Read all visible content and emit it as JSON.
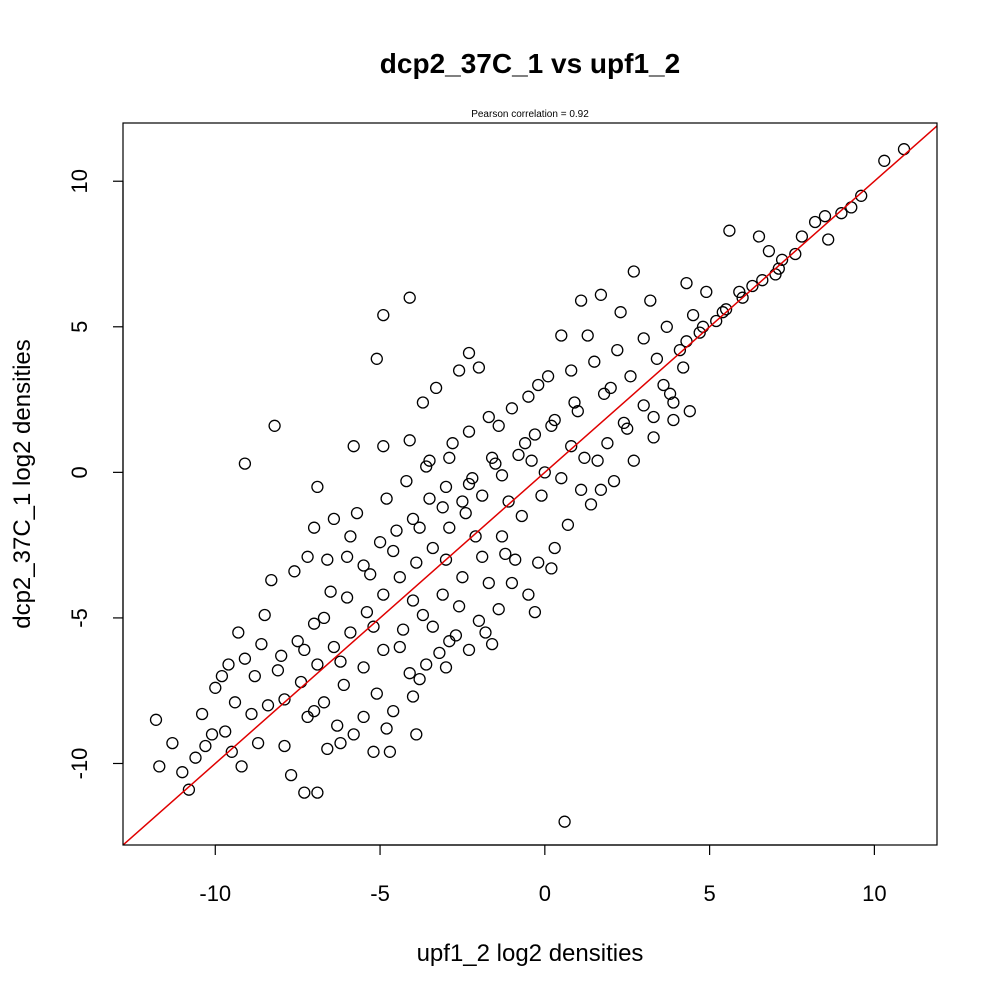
{
  "chart_data": {
    "type": "scatter",
    "title": "dcp2_37C_1 vs upf1_2",
    "subtitle": "Pearson correlation =  0.92",
    "xlabel": "upf1_2 log2 densities",
    "ylabel": "dcp2_37C_1 log2 densities",
    "xlim": [
      -12.8,
      11.9
    ],
    "ylim": [
      -12.8,
      12.0
    ],
    "xticks": [
      -10,
      -5,
      0,
      5,
      10
    ],
    "yticks": [
      -10,
      -5,
      0,
      5,
      10
    ],
    "xtick_labels": [
      "-10",
      "-5",
      "0",
      "5",
      "10"
    ],
    "ytick_labels": [
      "-10",
      "-5",
      "0",
      "5",
      "10"
    ],
    "grid": false,
    "marker": "open-circle",
    "point_color": "#000000",
    "fit_line": {
      "color": "#e00000",
      "slope": 1.0,
      "intercept": 0.0
    },
    "points": [
      [
        10.9,
        11.1
      ],
      [
        10.3,
        10.7
      ],
      [
        9.6,
        9.5
      ],
      [
        9.3,
        9.1
      ],
      [
        9.0,
        8.9
      ],
      [
        8.5,
        8.8
      ],
      [
        8.2,
        8.6
      ],
      [
        8.6,
        8.0
      ],
      [
        7.8,
        8.1
      ],
      [
        7.6,
        7.5
      ],
      [
        7.2,
        7.3
      ],
      [
        6.8,
        7.6
      ],
      [
        5.6,
        8.3
      ],
      [
        6.5,
        8.1
      ],
      [
        7.0,
        6.8
      ],
      [
        6.3,
        6.4
      ],
      [
        5.9,
        6.2
      ],
      [
        5.5,
        5.6
      ],
      [
        5.2,
        5.2
      ],
      [
        4.7,
        4.8
      ],
      [
        4.3,
        4.5
      ],
      [
        4.9,
        6.2
      ],
      [
        2.7,
        6.9
      ],
      [
        1.7,
        6.1
      ],
      [
        1.1,
        5.9
      ],
      [
        2.3,
        5.5
      ],
      [
        1.3,
        4.7
      ],
      [
        0.5,
        4.7
      ],
      [
        3.2,
        5.9
      ],
      [
        4.3,
        6.5
      ],
      [
        4.4,
        2.1
      ],
      [
        3.9,
        1.8
      ],
      [
        3.8,
        2.7
      ],
      [
        3.3,
        1.9
      ],
      [
        2.5,
        1.5
      ],
      [
        1.6,
        0.4
      ],
      [
        1.1,
        -0.6
      ],
      [
        1.7,
        -0.6
      ],
      [
        0.8,
        0.9
      ],
      [
        0.3,
        1.8
      ],
      [
        -4.1,
        6.0
      ],
      [
        -4.9,
        5.4
      ],
      [
        -5.1,
        3.9
      ],
      [
        -2.3,
        4.1
      ],
      [
        -2.6,
        3.5
      ],
      [
        -2.0,
        3.6
      ],
      [
        -3.3,
        2.9
      ],
      [
        -3.7,
        2.4
      ],
      [
        -8.2,
        1.6
      ],
      [
        -9.1,
        0.3
      ],
      [
        -5.8,
        0.9
      ],
      [
        -4.9,
        0.9
      ],
      [
        -4.1,
        1.1
      ],
      [
        -6.9,
        -0.5
      ],
      [
        -3.5,
        0.4
      ],
      [
        -2.8,
        1.0
      ],
      [
        -1.7,
        1.9
      ],
      [
        -1.0,
        2.2
      ],
      [
        -0.5,
        2.6
      ],
      [
        -0.2,
        3.0
      ],
      [
        -1.6,
        0.5
      ],
      [
        -2.2,
        -0.2
      ],
      [
        -2.5,
        -1.0
      ],
      [
        -3.0,
        -0.5
      ],
      [
        -3.5,
        -0.9
      ],
      [
        -4.0,
        -1.6
      ],
      [
        -4.5,
        -2.0
      ],
      [
        -5.0,
        -2.4
      ],
      [
        -5.5,
        -3.2
      ],
      [
        -6.0,
        -2.9
      ],
      [
        -6.6,
        -3.0
      ],
      [
        -7.2,
        -2.9
      ],
      [
        -7.6,
        -3.4
      ],
      [
        -8.3,
        -3.7
      ],
      [
        -6.5,
        -4.1
      ],
      [
        -7.0,
        -5.2
      ],
      [
        -7.5,
        -5.8
      ],
      [
        -8.0,
        -6.3
      ],
      [
        -8.6,
        -5.9
      ],
      [
        -9.1,
        -6.4
      ],
      [
        -9.6,
        -6.6
      ],
      [
        -10.0,
        -7.4
      ],
      [
        -9.4,
        -7.9
      ],
      [
        -8.9,
        -8.3
      ],
      [
        -9.7,
        -8.9
      ],
      [
        -10.3,
        -9.4
      ],
      [
        -10.6,
        -9.8
      ],
      [
        -11.0,
        -10.3
      ],
      [
        -11.3,
        -9.3
      ],
      [
        -11.8,
        -8.5
      ],
      [
        -11.7,
        -10.1
      ],
      [
        -10.8,
        -10.9
      ],
      [
        -9.2,
        -10.1
      ],
      [
        -7.7,
        -10.4
      ],
      [
        -7.3,
        -11.0
      ],
      [
        -6.9,
        -11.0
      ],
      [
        -6.2,
        -9.3
      ],
      [
        -5.2,
        -9.6
      ],
      [
        -4.7,
        -9.6
      ],
      [
        -3.9,
        -9.0
      ],
      [
        0.6,
        -12.0
      ],
      [
        -4.8,
        -8.8
      ],
      [
        -5.5,
        -8.4
      ],
      [
        -6.3,
        -8.7
      ],
      [
        -7.0,
        -8.2
      ],
      [
        -3.6,
        -6.6
      ],
      [
        -3.0,
        -6.7
      ],
      [
        -2.3,
        -6.1
      ],
      [
        -1.8,
        -5.5
      ],
      [
        -1.4,
        -4.7
      ],
      [
        -0.3,
        -4.8
      ],
      [
        -0.2,
        -3.1
      ],
      [
        0.2,
        -3.3
      ],
      [
        -0.9,
        -3.0
      ],
      [
        -1.7,
        -3.8
      ],
      [
        -2.6,
        -4.6
      ],
      [
        -3.4,
        -5.3
      ],
      [
        -4.4,
        -6.0
      ],
      [
        -4.1,
        -6.9
      ],
      [
        -3.8,
        -7.1
      ],
      [
        -2.9,
        -5.8
      ],
      [
        -1.2,
        -2.8
      ],
      [
        0.7,
        -1.8
      ],
      [
        1.4,
        -1.1
      ],
      [
        2.1,
        -0.3
      ],
      [
        2.7,
        0.4
      ],
      [
        3.3,
        1.2
      ],
      [
        3.9,
        2.4
      ],
      [
        2.0,
        2.9
      ],
      [
        0.9,
        2.4
      ],
      [
        -0.3,
        1.3
      ],
      [
        -0.8,
        0.6
      ],
      [
        -1.3,
        -0.1
      ],
      [
        -1.9,
        -0.8
      ],
      [
        -2.4,
        -1.4
      ],
      [
        -2.9,
        -1.9
      ],
      [
        -3.4,
        -2.6
      ],
      [
        -3.9,
        -3.1
      ],
      [
        -4.4,
        -3.6
      ],
      [
        -4.9,
        -4.2
      ],
      [
        -5.4,
        -4.8
      ],
      [
        -5.9,
        -5.5
      ],
      [
        -6.4,
        -6.0
      ],
      [
        -6.9,
        -6.6
      ],
      [
        -7.4,
        -7.2
      ],
      [
        -7.9,
        -7.8
      ],
      [
        -8.4,
        -8.0
      ],
      [
        -8.8,
        -7.0
      ],
      [
        -8.1,
        -6.8
      ],
      [
        -7.3,
        -6.1
      ],
      [
        -6.7,
        -5.0
      ],
      [
        -6.0,
        -4.3
      ],
      [
        -5.3,
        -3.5
      ],
      [
        -4.6,
        -2.7
      ],
      [
        -3.8,
        -1.9
      ],
      [
        -3.1,
        -1.2
      ],
      [
        -2.3,
        -0.4
      ],
      [
        -1.5,
        0.3
      ],
      [
        -0.6,
        1.0
      ],
      [
        0.2,
        1.6
      ],
      [
        1.0,
        2.1
      ],
      [
        1.8,
        2.7
      ],
      [
        2.6,
        3.3
      ],
      [
        3.4,
        3.9
      ],
      [
        4.1,
        4.2
      ],
      [
        4.8,
        5.0
      ],
      [
        5.4,
        5.5
      ],
      [
        6.0,
        6.0
      ],
      [
        6.6,
        6.6
      ],
      [
        7.1,
        7.0
      ],
      [
        -0.1,
        -0.8
      ],
      [
        -0.7,
        -1.5
      ],
      [
        -1.3,
        -2.2
      ],
      [
        -1.9,
        -2.9
      ],
      [
        -2.5,
        -3.6
      ],
      [
        -3.1,
        -4.2
      ],
      [
        -3.7,
        -4.9
      ],
      [
        -4.3,
        -5.4
      ],
      [
        -4.9,
        -6.1
      ],
      [
        -5.5,
        -6.7
      ],
      [
        -6.1,
        -7.3
      ],
      [
        -6.7,
        -7.9
      ],
      [
        -7.2,
        -8.4
      ],
      [
        0.5,
        -0.2
      ],
      [
        1.2,
        0.5
      ],
      [
        1.9,
        1.0
      ],
      [
        2.4,
        1.7
      ],
      [
        3.0,
        2.3
      ],
      [
        3.6,
        3.0
      ],
      [
        4.2,
        3.6
      ],
      [
        -5.9,
        -2.2
      ],
      [
        -6.4,
        -1.6
      ],
      [
        -7.0,
        -1.9
      ],
      [
        -5.7,
        -1.4
      ],
      [
        -4.8,
        -0.9
      ],
      [
        -4.2,
        -0.3
      ],
      [
        -3.6,
        0.2
      ],
      [
        -2.9,
        0.5
      ],
      [
        -2.3,
        1.4
      ],
      [
        -1.4,
        1.6
      ],
      [
        0.1,
        3.3
      ],
      [
        0.8,
        3.5
      ],
      [
        1.5,
        3.8
      ],
      [
        2.2,
        4.2
      ],
      [
        3.0,
        4.6
      ],
      [
        3.7,
        5.0
      ],
      [
        4.5,
        5.4
      ],
      [
        -1.0,
        -3.8
      ],
      [
        -0.5,
        -4.2
      ],
      [
        0.3,
        -2.6
      ],
      [
        -2.0,
        -5.1
      ],
      [
        -2.7,
        -5.6
      ],
      [
        -3.2,
        -6.2
      ],
      [
        -1.6,
        -5.9
      ],
      [
        -4.0,
        -7.7
      ],
      [
        -4.6,
        -8.2
      ],
      [
        -5.1,
        -7.6
      ],
      [
        -8.5,
        -4.9
      ],
      [
        -9.3,
        -5.5
      ],
      [
        -9.8,
        -7.0
      ],
      [
        -10.4,
        -8.3
      ],
      [
        -10.1,
        -9.0
      ],
      [
        -9.5,
        -9.6
      ],
      [
        -8.7,
        -9.3
      ],
      [
        -7.9,
        -9.4
      ],
      [
        -6.6,
        -9.5
      ],
      [
        -5.8,
        -9.0
      ],
      [
        -2.1,
        -2.2
      ],
      [
        -1.1,
        -1.0
      ],
      [
        -4.0,
        -4.4
      ],
      [
        -5.2,
        -5.3
      ],
      [
        -6.2,
        -6.5
      ],
      [
        -3.0,
        -3.0
      ],
      [
        0.0,
        0.0
      ],
      [
        -0.4,
        0.4
      ]
    ]
  }
}
